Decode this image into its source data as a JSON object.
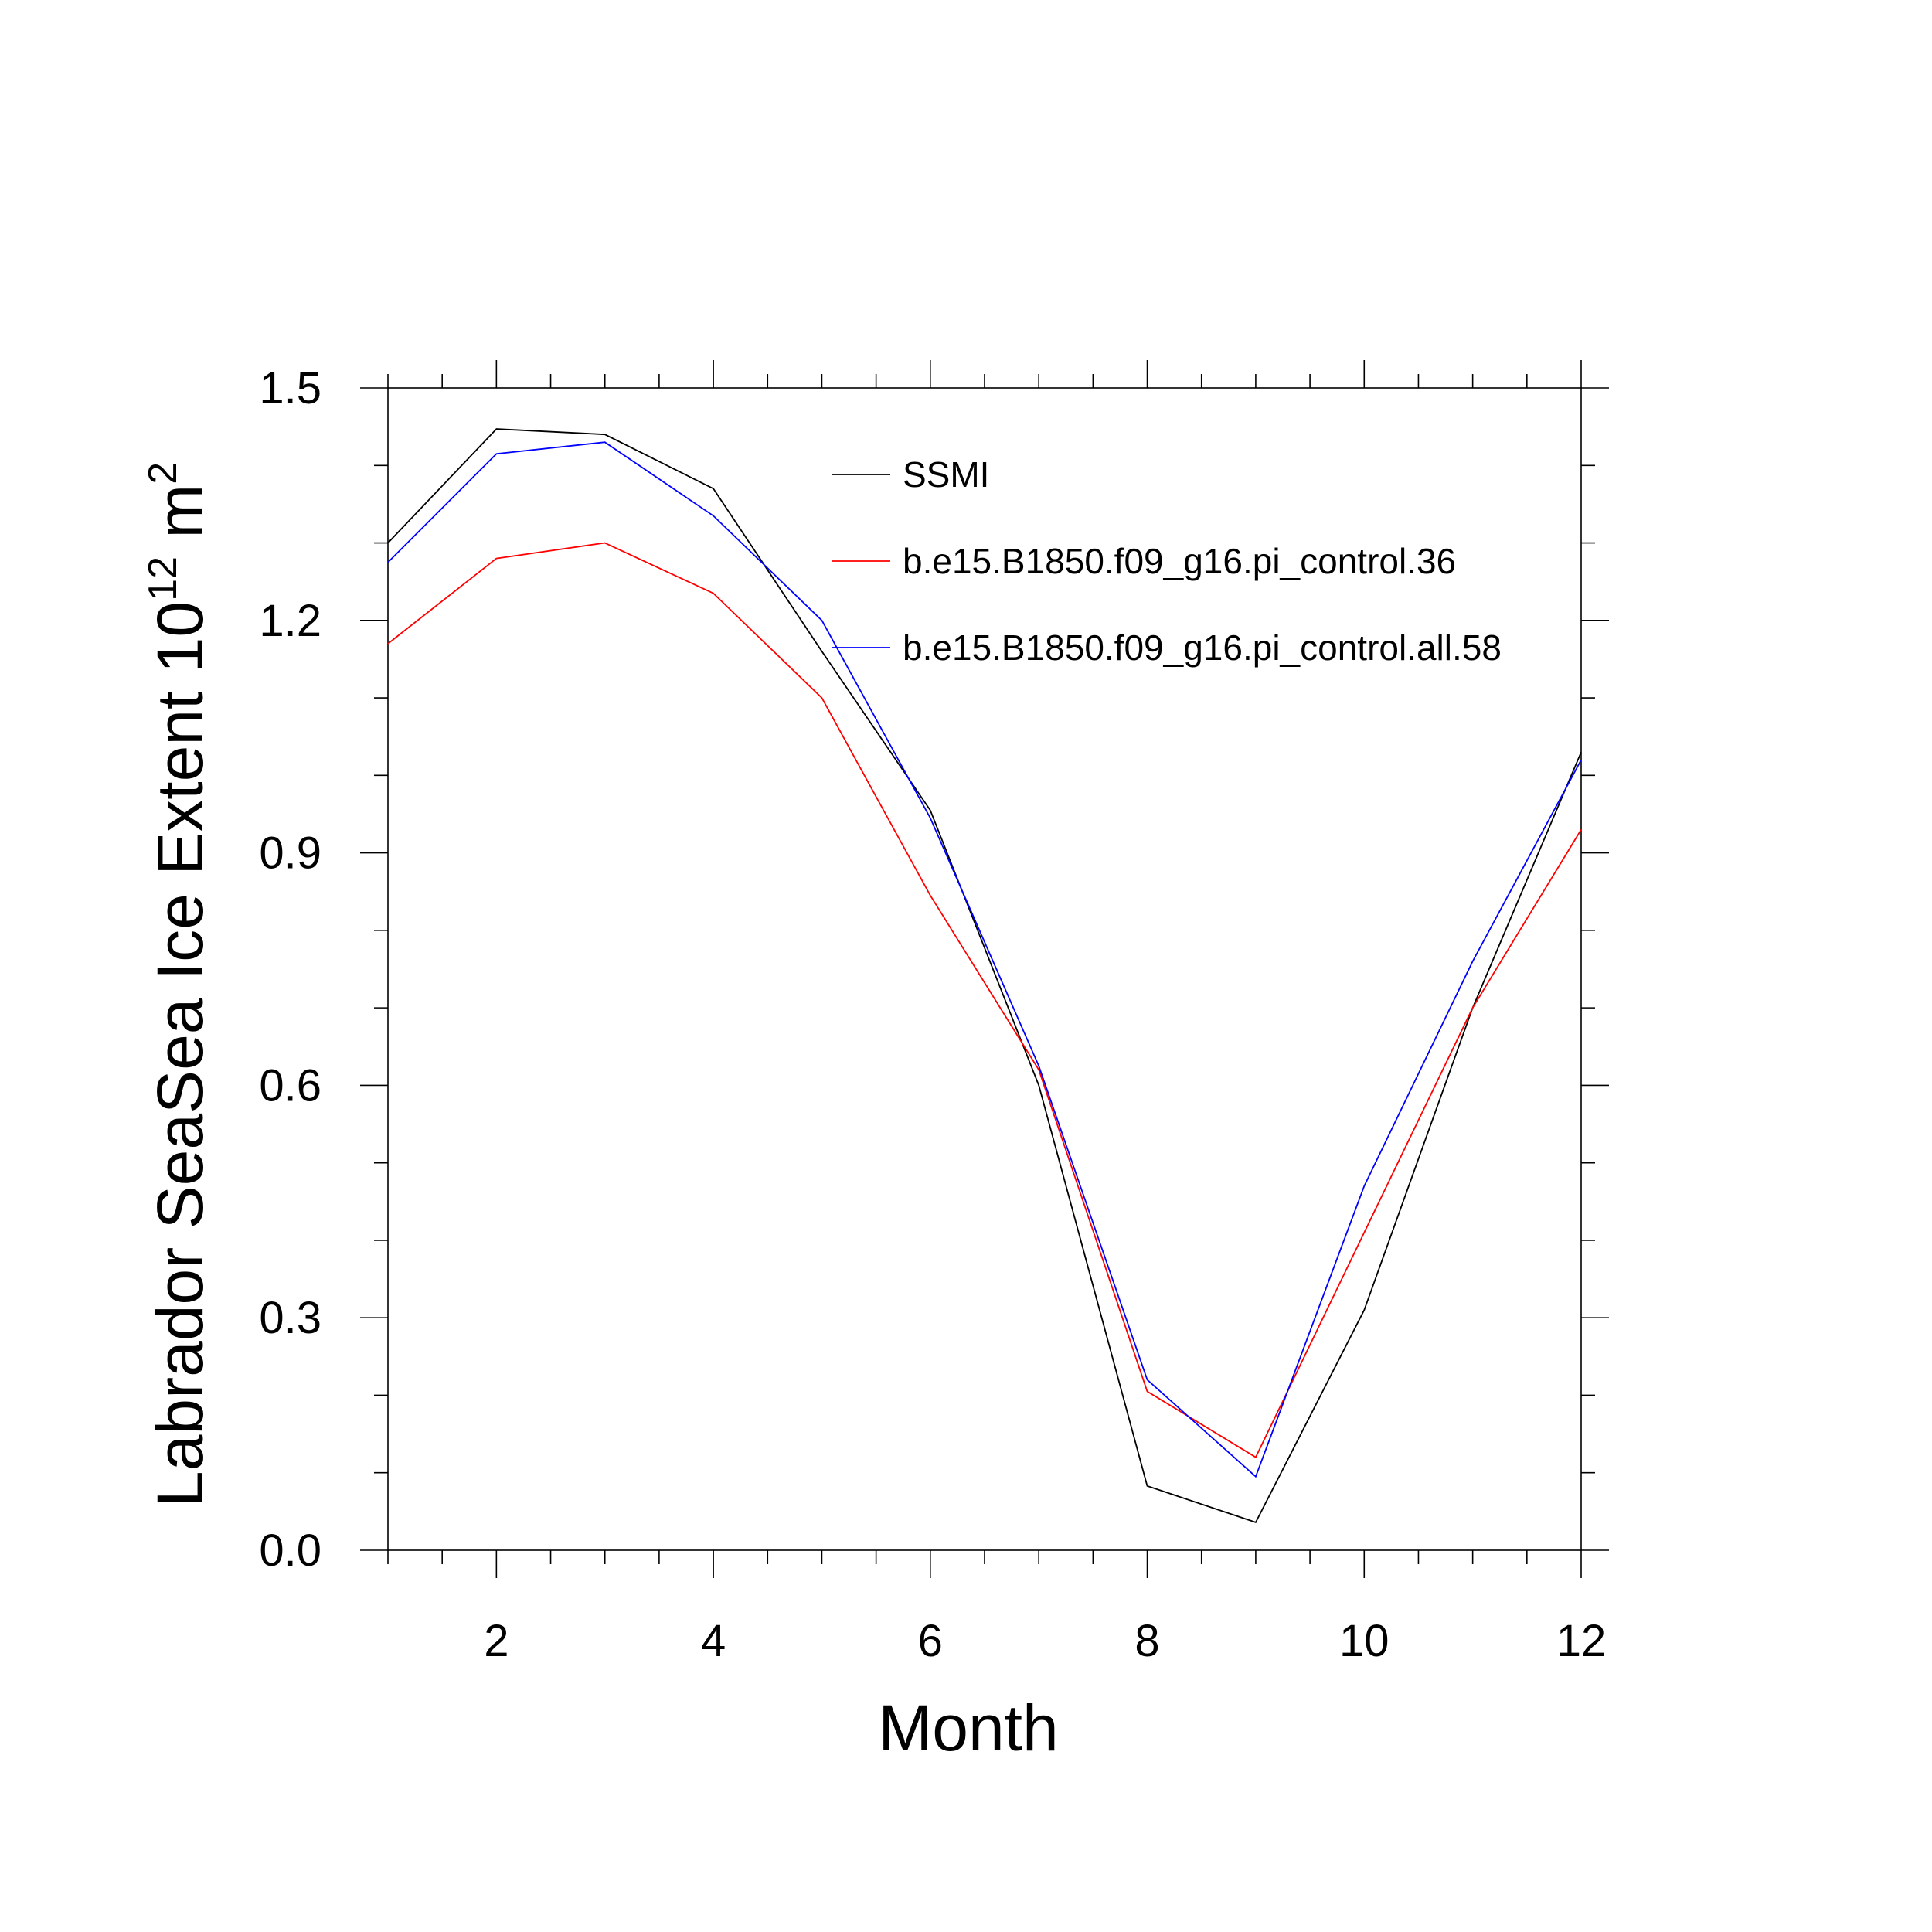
{
  "chart_data": {
    "type": "line",
    "xlabel": "Month",
    "ylabel": {
      "prefix": "Labrador SeaSea Ice Extent 10",
      "exponent1": "12",
      "unit": " m",
      "exponent2": "2"
    },
    "xlim": [
      1,
      12
    ],
    "ylim": [
      0.0,
      1.5
    ],
    "xticks": [
      2,
      4,
      6,
      8,
      10,
      12
    ],
    "xtick_labels": [
      "2",
      "4",
      "6",
      "8",
      "10",
      "12"
    ],
    "yticks": [
      0.0,
      0.3,
      0.6,
      0.9,
      1.2,
      1.5
    ],
    "ytick_labels": [
      "0.0",
      "0.3",
      "0.6",
      "0.9",
      "1.2",
      "1.5"
    ],
    "grid": false,
    "legend_position": "top-right",
    "x": [
      1,
      2,
      3,
      4,
      5,
      6,
      7,
      8,
      9,
      10,
      11,
      12
    ],
    "series": [
      {
        "name": "SSMI",
        "color": "#000000",
        "values": [
          1.3,
          1.447,
          1.44,
          1.37,
          1.16,
          0.955,
          0.6,
          0.083,
          0.036,
          0.31,
          0.7,
          1.03
        ]
      },
      {
        "name": "b.e15.B1850.f09_g16.pi_control.36",
        "color": "#ff0000",
        "values": [
          1.17,
          1.28,
          1.3,
          1.235,
          1.1,
          0.845,
          0.62,
          0.205,
          0.12,
          0.41,
          0.7,
          0.93
        ]
      },
      {
        "name": "b.e15.B1850.f09_g16.pi_control.all.58",
        "color": "#0000ff",
        "values": [
          1.275,
          1.415,
          1.43,
          1.335,
          1.2,
          0.945,
          0.625,
          0.22,
          0.095,
          0.47,
          0.76,
          1.02
        ]
      }
    ]
  }
}
